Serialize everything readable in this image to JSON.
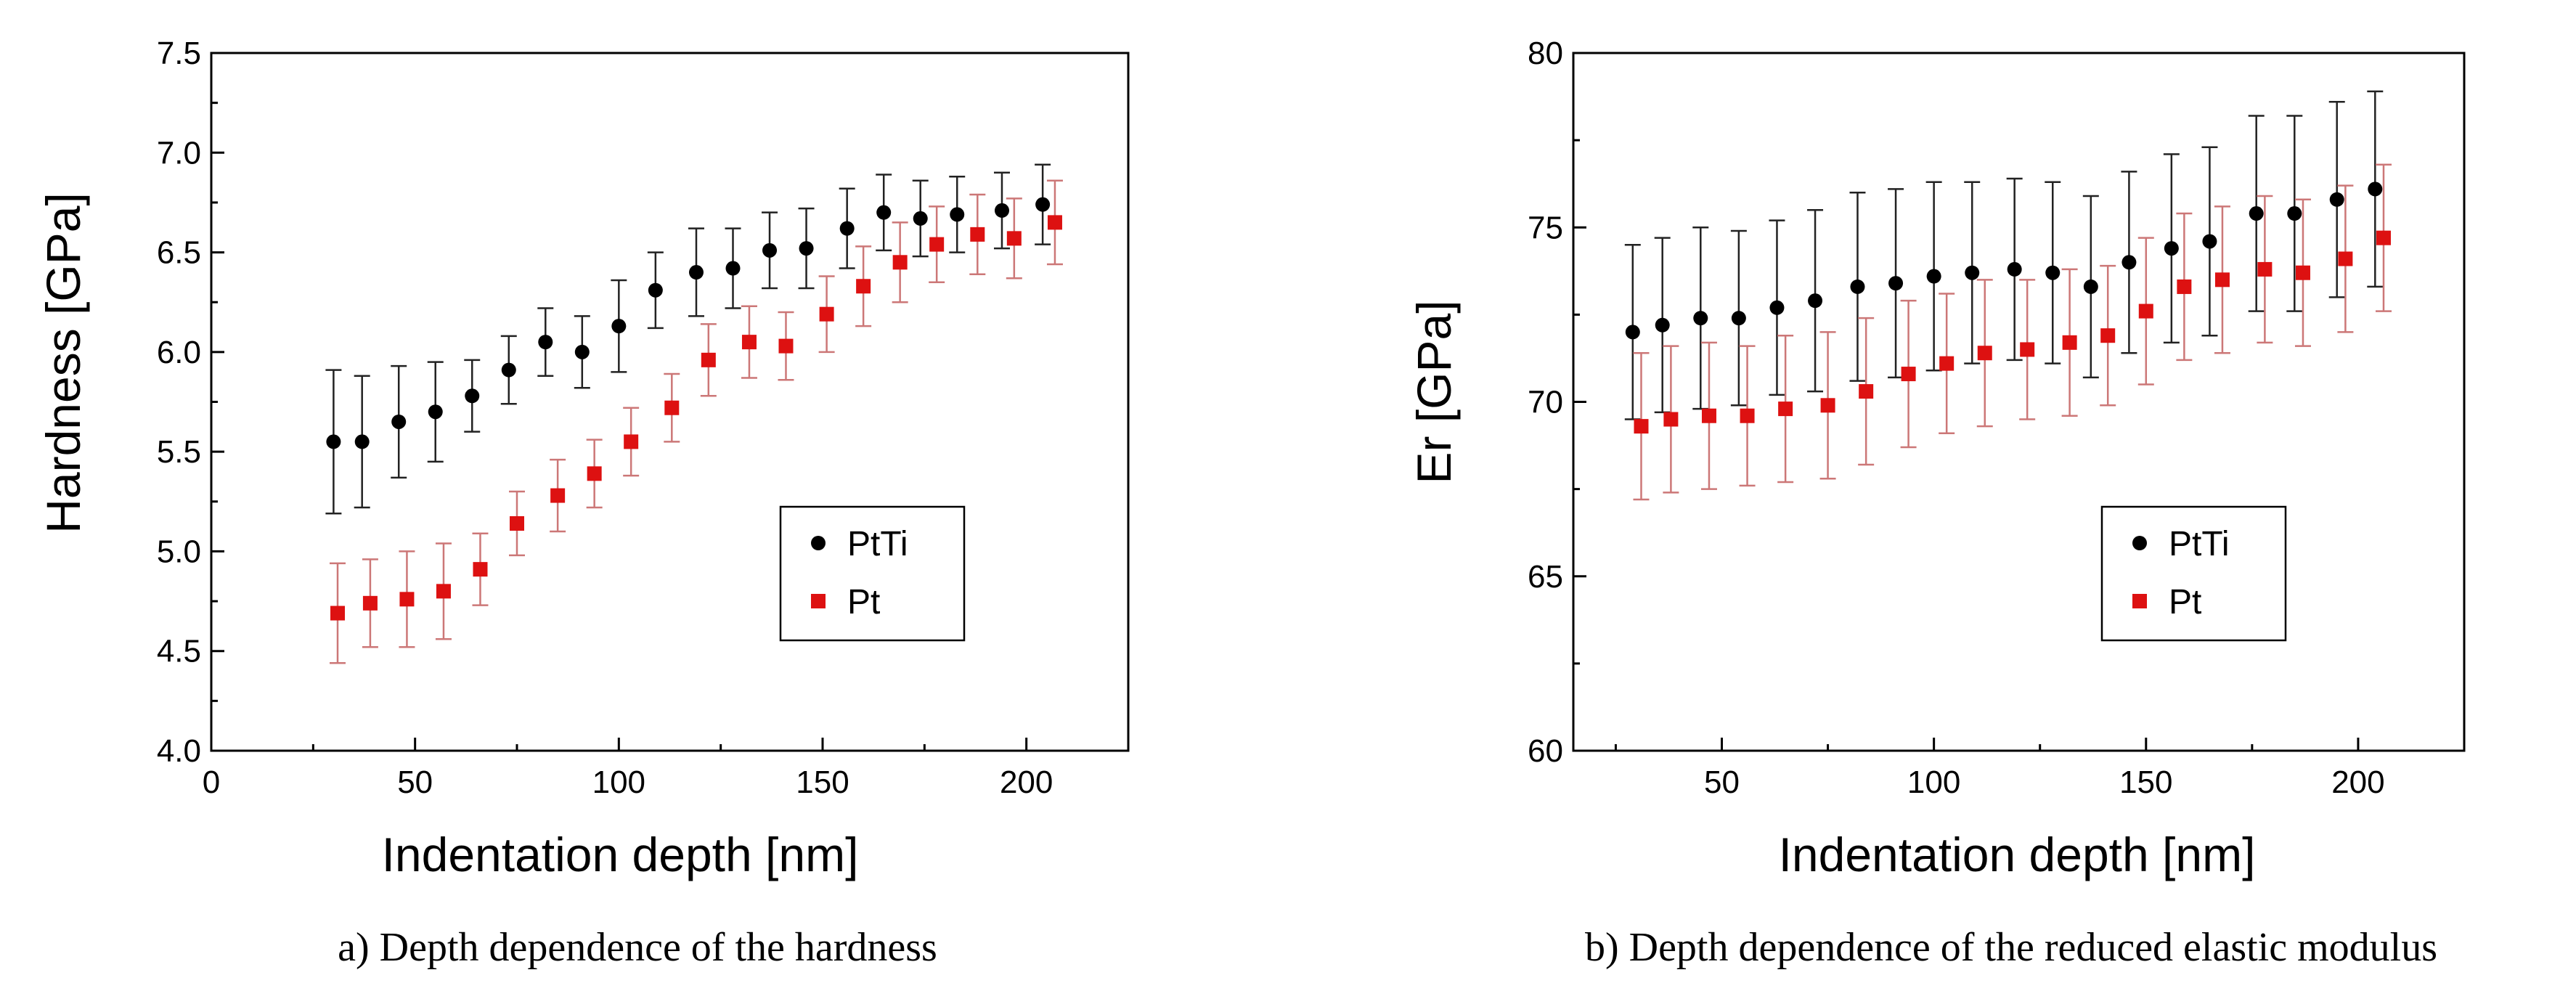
{
  "chart_data": [
    {
      "type": "scatter",
      "panel": "a",
      "caption": "a) Depth dependence of the hardness",
      "xlabel": "Indentation depth [nm]",
      "ylabel": "Hardness [GPa]",
      "xlim": [
        0,
        225
      ],
      "ylim": [
        4.0,
        7.5
      ],
      "xticks": [
        "0",
        "50",
        "100",
        "150",
        "200"
      ],
      "yticks": [
        "4.0",
        "4.5",
        "5.0",
        "5.5",
        "6.0",
        "6.5",
        "7.0",
        "7.5"
      ],
      "legend": {
        "position": "bottom-right",
        "entries": [
          "PtTi",
          "Pt"
        ]
      },
      "series": [
        {
          "name": "PtTi",
          "marker": "circle",
          "color": "#000000",
          "errcolor": "#222222",
          "x": [
            30,
            37,
            46,
            55,
            64,
            73,
            82,
            91,
            100,
            109,
            119,
            128,
            137,
            146,
            156,
            165,
            174,
            183,
            194,
            204
          ],
          "y": [
            5.55,
            5.55,
            5.65,
            5.7,
            5.78,
            5.91,
            6.05,
            6.0,
            6.13,
            6.31,
            6.4,
            6.42,
            6.51,
            6.52,
            6.62,
            6.7,
            6.67,
            6.69,
            6.71,
            6.74
          ],
          "err": [
            0.36,
            0.33,
            0.28,
            0.25,
            0.18,
            0.17,
            0.17,
            0.18,
            0.23,
            0.19,
            0.22,
            0.2,
            0.19,
            0.2,
            0.2,
            0.19,
            0.19,
            0.19,
            0.19,
            0.2
          ]
        },
        {
          "name": "Pt",
          "marker": "square",
          "color": "#dd1111",
          "errcolor": "#cc7777",
          "x": [
            31,
            39,
            48,
            57,
            66,
            75,
            85,
            94,
            103,
            113,
            122,
            132,
            141,
            151,
            160,
            169,
            178,
            188,
            197,
            207
          ],
          "y": [
            4.69,
            4.74,
            4.76,
            4.8,
            4.91,
            5.14,
            5.28,
            5.39,
            5.55,
            5.72,
            5.96,
            6.05,
            6.03,
            6.19,
            6.33,
            6.45,
            6.54,
            6.59,
            6.57,
            6.65
          ],
          "err": [
            0.25,
            0.22,
            0.24,
            0.24,
            0.18,
            0.16,
            0.18,
            0.17,
            0.17,
            0.17,
            0.18,
            0.18,
            0.17,
            0.19,
            0.2,
            0.2,
            0.19,
            0.2,
            0.2,
            0.21
          ]
        }
      ]
    },
    {
      "type": "scatter",
      "panel": "b",
      "caption": "b) Depth dependence of the reduced elastic modulus",
      "xlabel": "Indentation depth [nm]",
      "ylabel": "Er [GPa]",
      "xlim": [
        15,
        225
      ],
      "ylim": [
        60,
        80
      ],
      "xticks": [
        "50",
        "100",
        "150",
        "200"
      ],
      "yticks": [
        "60",
        "65",
        "70",
        "75",
        "80"
      ],
      "legend": {
        "position": "bottom-right",
        "entries": [
          "PtTi",
          "Pt"
        ]
      },
      "series": [
        {
          "name": "PtTi",
          "marker": "circle",
          "color": "#000000",
          "errcolor": "#222222",
          "x": [
            29,
            36,
            45,
            54,
            63,
            72,
            82,
            91,
            100,
            109,
            119,
            128,
            137,
            146,
            156,
            165,
            176,
            185,
            195,
            204
          ],
          "y": [
            72.0,
            72.2,
            72.4,
            72.4,
            72.7,
            72.9,
            73.3,
            73.4,
            73.6,
            73.7,
            73.8,
            73.7,
            73.3,
            74.0,
            74.4,
            74.6,
            75.4,
            75.4,
            75.8,
            76.1
          ],
          "err": [
            2.5,
            2.5,
            2.6,
            2.5,
            2.5,
            2.6,
            2.7,
            2.7,
            2.7,
            2.6,
            2.6,
            2.6,
            2.6,
            2.6,
            2.7,
            2.7,
            2.8,
            2.8,
            2.8,
            2.8
          ]
        },
        {
          "name": "Pt",
          "marker": "square",
          "color": "#dd1111",
          "errcolor": "#cc7777",
          "x": [
            31,
            38,
            47,
            56,
            65,
            75,
            84,
            94,
            103,
            112,
            122,
            132,
            141,
            150,
            159,
            168,
            178,
            187,
            197,
            206
          ],
          "y": [
            69.3,
            69.5,
            69.6,
            69.6,
            69.8,
            69.9,
            70.3,
            70.8,
            71.1,
            71.4,
            71.5,
            71.7,
            71.9,
            72.6,
            73.3,
            73.5,
            73.8,
            73.7,
            74.1,
            74.7
          ],
          "err": [
            2.1,
            2.1,
            2.1,
            2.0,
            2.1,
            2.1,
            2.1,
            2.1,
            2.0,
            2.1,
            2.0,
            2.1,
            2.0,
            2.1,
            2.1,
            2.1,
            2.1,
            2.1,
            2.1,
            2.1
          ]
        }
      ]
    }
  ]
}
